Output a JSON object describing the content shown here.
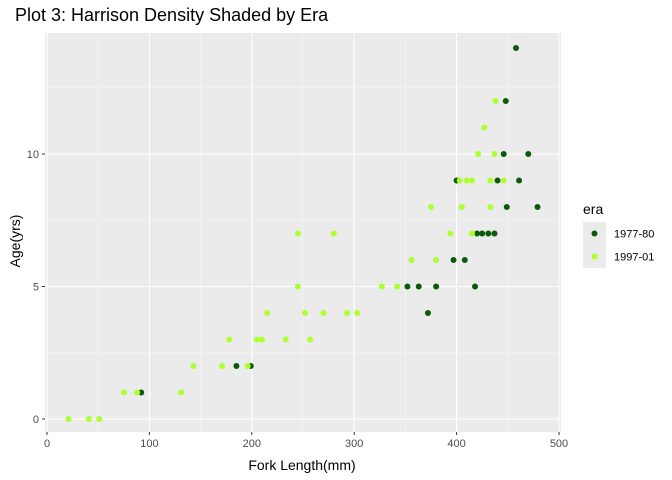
{
  "chart_data": {
    "type": "scatter",
    "title": "Plot 3: Harrison Density Shaded by Era",
    "xlabel": "Fork Length(mm)",
    "ylabel": "Age(yrs)",
    "xlim": [
      0,
      500
    ],
    "ylim": [
      0,
      14
    ],
    "x_ticks": [
      0,
      100,
      200,
      300,
      400,
      500
    ],
    "y_ticks": [
      0,
      5,
      10
    ],
    "grid": true,
    "legend": {
      "title": "era",
      "position": "right"
    },
    "series": [
      {
        "name": "1977-80",
        "color": "#0b5a0b",
        "points": [
          [
            92,
            1
          ],
          [
            185,
            2
          ],
          [
            199,
            2
          ],
          [
            352,
            5
          ],
          [
            363,
            5
          ],
          [
            372,
            4
          ],
          [
            380,
            5
          ],
          [
            397,
            6
          ],
          [
            400,
            9
          ],
          [
            408,
            6
          ],
          [
            418,
            5
          ],
          [
            420,
            7
          ],
          [
            425,
            7
          ],
          [
            431,
            7
          ],
          [
            437,
            7
          ],
          [
            440,
            9
          ],
          [
            446,
            10
          ],
          [
            448,
            12
          ],
          [
            449,
            8
          ],
          [
            458,
            14
          ],
          [
            461,
            9
          ],
          [
            470,
            10
          ],
          [
            479,
            8
          ]
        ]
      },
      {
        "name": "1997-01",
        "color": "#adff2f",
        "points": [
          [
            21,
            0
          ],
          [
            41,
            0
          ],
          [
            51,
            0
          ],
          [
            75,
            1
          ],
          [
            88,
            1
          ],
          [
            131,
            1
          ],
          [
            143,
            2
          ],
          [
            171,
            2
          ],
          [
            178,
            3
          ],
          [
            196,
            2
          ],
          [
            205,
            3
          ],
          [
            210,
            3
          ],
          [
            215,
            4
          ],
          [
            233,
            3
          ],
          [
            245,
            5
          ],
          [
            245,
            7
          ],
          [
            252,
            4
          ],
          [
            257,
            3
          ],
          [
            270,
            4
          ],
          [
            280,
            7
          ],
          [
            293,
            4
          ],
          [
            303,
            4
          ],
          [
            327,
            5
          ],
          [
            342,
            5
          ],
          [
            356,
            6
          ],
          [
            375,
            8
          ],
          [
            380,
            6
          ],
          [
            394,
            7
          ],
          [
            403,
            9
          ],
          [
            405,
            8
          ],
          [
            410,
            9
          ],
          [
            415,
            7
          ],
          [
            415,
            9
          ],
          [
            421,
            10
          ],
          [
            427,
            11
          ],
          [
            433,
            9
          ],
          [
            433,
            8
          ],
          [
            437,
            10
          ],
          [
            438,
            12
          ],
          [
            446,
            9
          ]
        ]
      }
    ]
  }
}
